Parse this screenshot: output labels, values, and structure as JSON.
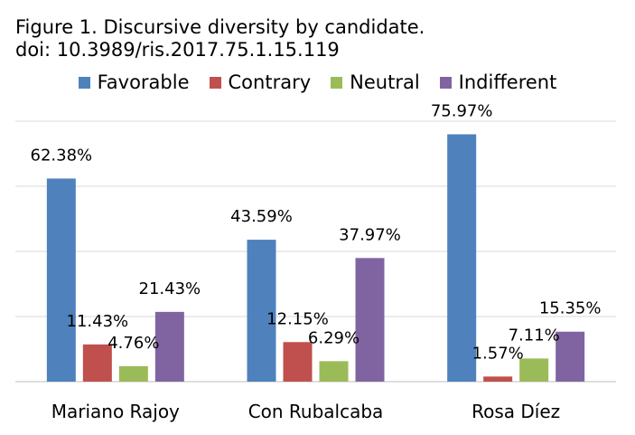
{
  "title": {
    "line1": "Figure 1. Discursive diversity by candidate.",
    "line2": "doi: 10.3989/ris.2017.75.1.15.119"
  },
  "colors": {
    "Favorable": "#4F81BD",
    "Contrary": "#C0504D",
    "Neutral": "#9BBB59",
    "Indifferent": "#8064A2",
    "grid": "#D9D9D9",
    "axis": "#BFBFBF"
  },
  "chart_data": {
    "type": "bar",
    "categories": [
      "Mariano Rajoy",
      "Con Rubalcaba",
      "Rosa Díez"
    ],
    "series": [
      {
        "name": "Favorable",
        "values": [
          62.38,
          43.59,
          75.97
        ],
        "labels": [
          "62.38%",
          "43.59%",
          "75.97%"
        ]
      },
      {
        "name": "Contrary",
        "values": [
          11.43,
          12.15,
          1.57
        ],
        "labels": [
          "11.43%",
          "12.15%",
          "1.57%"
        ]
      },
      {
        "name": "Neutral",
        "values": [
          4.76,
          6.29,
          7.11
        ],
        "labels": [
          "4.76%",
          "6.29%",
          "7.11%"
        ]
      },
      {
        "name": "Indifferent",
        "values": [
          21.43,
          37.97,
          15.35
        ],
        "labels": [
          "21.43%",
          "37.97%",
          "15.35%"
        ]
      }
    ],
    "ylim": [
      0,
      80
    ],
    "grid": true,
    "legend_position": "top",
    "y_axis_labels": false,
    "xlabel": "",
    "ylabel": ""
  }
}
